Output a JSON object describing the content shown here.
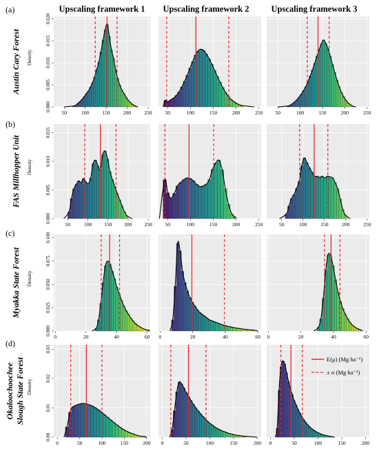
{
  "figure": {
    "column_headers": [
      "Upscaling framework 1",
      "Upscaling framework 2",
      "Upscaling framework 3"
    ],
    "row_labels": [
      {
        "letter": "(a)",
        "lines": [
          "Austin Cary Forest"
        ]
      },
      {
        "letter": "(b)",
        "lines": [
          "FAS Millhopper Unit"
        ]
      },
      {
        "letter": "(c)",
        "lines": [
          "Myakka State Forest"
        ]
      },
      {
        "letter": "(d)",
        "lines": [
          "Okaloochoochee",
          "Slough State Forest"
        ]
      }
    ],
    "legend": {
      "mean_label": "E(μ) (Mg ha⁻¹)",
      "sd_label": "± σ (Mg ha⁻¹)",
      "position": "top-right of panel d3"
    },
    "colors": {
      "panel_bg": "#ebebeb",
      "grid": "#ffffff",
      "mean_line": "#e8272b",
      "sd_line": "#e8272b",
      "density_curve": "#000000",
      "palette": "viridis"
    }
  },
  "chart_data": [
    {
      "id": "a1",
      "type": "bar",
      "title": "",
      "xlabel": "",
      "ylabel": "Density",
      "xlim": [
        25,
        255
      ],
      "ylim": [
        0,
        0.0205
      ],
      "xticks": [
        "50",
        "100",
        "150",
        "200",
        "250"
      ],
      "xtick_values": [
        50,
        100,
        150,
        200,
        250
      ],
      "yticks": [
        "0.000",
        "0.005",
        "0.010",
        "0.015",
        "0.020"
      ],
      "ytick_values": [
        0,
        0.005,
        0.01,
        0.015,
        0.02
      ],
      "hist": {
        "start": 70,
        "width": 5,
        "values": [
          0.0002,
          0.0004,
          0.0008,
          0.0012,
          0.0017,
          0.0023,
          0.003,
          0.0036,
          0.0045,
          0.0055,
          0.0068,
          0.0085,
          0.0102,
          0.0125,
          0.0152,
          0.0175,
          0.0188,
          0.016,
          0.013,
          0.011,
          0.0085,
          0.0065,
          0.005,
          0.0038,
          0.003,
          0.0022,
          0.0015,
          0.001,
          0.0006,
          0.0003,
          0.0001
        ]
      },
      "density_range": [
        50,
        225
      ],
      "mean": 152,
      "sd_lines": [
        124,
        176
      ]
    },
    {
      "id": "a2",
      "type": "bar",
      "title": "",
      "xlabel": "",
      "ylabel": "",
      "xlim": [
        30,
        255
      ],
      "ylim": [
        0,
        0.0205
      ],
      "xticks": [
        "50",
        "100",
        "150",
        "200",
        "250"
      ],
      "xtick_values": [
        50,
        100,
        150,
        200,
        250
      ],
      "yticks": [],
      "ytick_values": [
        0,
        0.005,
        0.01,
        0.015,
        0.02
      ],
      "hist": {
        "start": 42,
        "width": 6,
        "values": [
          0.0015,
          0.0012,
          0.0016,
          0.002,
          0.0026,
          0.0034,
          0.0045,
          0.0058,
          0.0072,
          0.0088,
          0.0103,
          0.0118,
          0.0127,
          0.0131,
          0.0128,
          0.012,
          0.0109,
          0.0097,
          0.0083,
          0.0069,
          0.0056,
          0.0044,
          0.0033,
          0.0024,
          0.0017,
          0.0012,
          0.0008,
          0.0005,
          0.0003
        ]
      },
      "density_range": [
        40,
        240
      ],
      "mean": 112,
      "sd_lines": [
        48,
        184
      ]
    },
    {
      "id": "a3",
      "type": "bar",
      "title": "",
      "xlabel": "",
      "ylabel": "",
      "xlim": [
        25,
        255
      ],
      "ylim": [
        0,
        0.0205
      ],
      "xticks": [
        "50",
        "100",
        "150",
        "200",
        "250"
      ],
      "xtick_values": [
        50,
        100,
        150,
        200,
        250
      ],
      "yticks": [],
      "ytick_values": [
        0,
        0.005,
        0.01,
        0.015,
        0.02
      ],
      "hist": {
        "start": 70,
        "width": 5,
        "values": [
          0.0002,
          0.0004,
          0.0007,
          0.0011,
          0.0016,
          0.0022,
          0.0029,
          0.0037,
          0.0046,
          0.0057,
          0.007,
          0.0084,
          0.0099,
          0.0115,
          0.013,
          0.0143,
          0.0152,
          0.0144,
          0.0132,
          0.0115,
          0.0096,
          0.0078,
          0.0061,
          0.0046,
          0.0033,
          0.0023,
          0.0015,
          0.0009,
          0.0005,
          0.0002
        ]
      },
      "density_range": [
        50,
        225
      ],
      "mean": 140,
      "sd_lines": [
        116,
        165
      ]
    },
    {
      "id": "b1",
      "type": "bar",
      "title": "",
      "xlabel": "",
      "ylabel": "Density",
      "xlim": [
        15,
        255
      ],
      "ylim": [
        0,
        0.0165
      ],
      "xticks": [
        "50",
        "100",
        "150",
        "200",
        "250"
      ],
      "xtick_values": [
        50,
        100,
        150,
        200,
        250
      ],
      "yticks": [
        "0.000",
        "0.005",
        "0.010",
        "0.015"
      ],
      "ytick_values": [
        0,
        0.005,
        0.01,
        0.015
      ],
      "hist": {
        "start": 50,
        "width": 6,
        "values": [
          0.0012,
          0.0035,
          0.0052,
          0.006,
          0.0066,
          0.0063,
          0.007,
          0.0064,
          0.0061,
          0.0071,
          0.0096,
          0.0102,
          0.0092,
          0.0085,
          0.0112,
          0.0118,
          0.0104,
          0.0082,
          0.0068,
          0.0056,
          0.0044,
          0.0033,
          0.0022,
          0.0012,
          0.0005
        ]
      },
      "density_range": [
        40,
        210
      ],
      "mean": 131,
      "sd_lines": [
        92,
        170
      ]
    },
    {
      "id": "b2",
      "type": "bar",
      "title": "",
      "xlabel": "",
      "ylabel": "",
      "xlim": [
        30,
        255
      ],
      "ylim": [
        0,
        0.0165
      ],
      "xticks": [
        "50",
        "100",
        "150",
        "200",
        "250"
      ],
      "xtick_values": [
        50,
        100,
        150,
        200,
        250
      ],
      "yticks": [],
      "ytick_values": [
        0,
        0.005,
        0.01,
        0.015
      ],
      "hist": {
        "start": 40,
        "width": 7,
        "values": [
          0.0068,
          0.0045,
          0.0036,
          0.0044,
          0.0057,
          0.0063,
          0.0068,
          0.0071,
          0.007,
          0.0066,
          0.006,
          0.0056,
          0.0057,
          0.006,
          0.0068,
          0.0086,
          0.0097,
          0.0102,
          0.0085,
          0.0052,
          0.0025,
          0.0008,
          0.0003
        ]
      },
      "density_range": [
        32,
        195
      ],
      "mean": 97,
      "sd_lines": [
        44,
        151
      ]
    },
    {
      "id": "b3",
      "type": "bar",
      "title": "",
      "xlabel": "",
      "ylabel": "",
      "xlim": [
        15,
        255
      ],
      "ylim": [
        0,
        0.0165
      ],
      "xticks": [
        "50",
        "100",
        "150",
        "200",
        "250"
      ],
      "xtick_values": [
        50,
        100,
        150,
        200,
        250
      ],
      "yticks": [],
      "ytick_values": [
        0,
        0.005,
        0.01,
        0.015
      ],
      "hist": {
        "start": 58,
        "width": 6,
        "values": [
          0.0008,
          0.0022,
          0.0035,
          0.0042,
          0.0053,
          0.0065,
          0.0092,
          0.0106,
          0.0098,
          0.0089,
          0.0081,
          0.0074,
          0.0074,
          0.0072,
          0.0074,
          0.0071,
          0.0074,
          0.0073,
          0.0071,
          0.0063,
          0.0052,
          0.0034,
          0.0016,
          0.0006
        ]
      },
      "density_range": [
        45,
        210
      ],
      "mean": 126,
      "sd_lines": [
        92,
        158
      ]
    },
    {
      "id": "c1",
      "type": "bar",
      "title": "",
      "xlabel": "",
      "ylabel": "Density",
      "xlim": [
        -1,
        62
      ],
      "ylim": [
        0,
        0.1035
      ],
      "xticks": [
        "0",
        "20",
        "40",
        "60"
      ],
      "xtick_values": [
        0,
        20,
        40,
        60
      ],
      "yticks": [
        "0.000",
        "0.025",
        "0.050",
        "0.075",
        "0.100"
      ],
      "ytick_values": [
        0,
        0.025,
        0.05,
        0.075,
        0.1
      ],
      "hist": {
        "start": 26,
        "width": 1.5,
        "values": [
          0.003,
          0.012,
          0.03,
          0.052,
          0.07,
          0.075,
          0.072,
          0.064,
          0.056,
          0.047,
          0.04,
          0.033,
          0.027,
          0.022,
          0.018,
          0.014,
          0.011,
          0.008,
          0.006,
          0.0045,
          0.003,
          0.002,
          0.0013,
          0.0008
        ]
      },
      "density_range": [
        24,
        61
      ],
      "mean": 35.5,
      "sd_lines": [
        30,
        42
      ]
    },
    {
      "id": "c2",
      "type": "bar",
      "title": "",
      "xlabel": "",
      "ylabel": "",
      "xlim": [
        -1,
        62
      ],
      "ylim": [
        0,
        0.1035
      ],
      "xticks": [
        "0",
        "20",
        "40",
        "60"
      ],
      "xtick_values": [
        0,
        20,
        40,
        60
      ],
      "yticks": [],
      "ytick_values": [
        0,
        0.025,
        0.05,
        0.075,
        0.1
      ],
      "hist": {
        "start": 7,
        "width": 1.5,
        "values": [
          0.012,
          0.048,
          0.094,
          0.086,
          0.064,
          0.052,
          0.043,
          0.036,
          0.031,
          0.027,
          0.023,
          0.02,
          0.018,
          0.016,
          0.014,
          0.012,
          0.011,
          0.01,
          0.009,
          0.008,
          0.007,
          0.0062,
          0.0055,
          0.0048,
          0.0042,
          0.0037,
          0.0032,
          0.0028,
          0.0024,
          0.002,
          0.0017,
          0.0014,
          0.0012,
          0.001
        ]
      },
      "density_range": [
        6,
        60
      ],
      "mean": 19.5,
      "sd_lines": [
        39.5
      ]
    },
    {
      "id": "c3",
      "type": "bar",
      "title": "",
      "xlabel": "",
      "ylabel": "",
      "xlim": [
        -1,
        62
      ],
      "ylim": [
        0,
        0.1035
      ],
      "xticks": [
        "0",
        "20",
        "40",
        "60"
      ],
      "xtick_values": [
        0,
        20,
        40,
        60
      ],
      "yticks": [],
      "ytick_values": [
        0,
        0.025,
        0.05,
        0.075,
        0.1
      ],
      "hist": {
        "start": 30,
        "width": 1.5,
        "values": [
          0.004,
          0.013,
          0.035,
          0.065,
          0.082,
          0.081,
          0.07,
          0.055,
          0.042,
          0.032,
          0.024,
          0.018,
          0.013,
          0.009,
          0.006,
          0.004,
          0.0025,
          0.0015
        ]
      },
      "density_range": [
        28,
        58
      ],
      "mean": 38.5,
      "sd_lines": [
        34.5,
        44
      ]
    },
    {
      "id": "d1",
      "type": "bar",
      "title": "",
      "xlabel": "",
      "ylabel": "Density",
      "xlim": [
        -8,
        208
      ],
      "ylim": [
        0,
        0.0315
      ],
      "xticks": [
        "0",
        "50",
        "100",
        "150",
        "200"
      ],
      "xtick_values": [
        0,
        50,
        100,
        150,
        200
      ],
      "yticks": [
        "0.00",
        "0.01",
        "0.02",
        "0.03"
      ],
      "ytick_values": [
        0,
        0.01,
        0.02,
        0.03
      ],
      "hist": {
        "start": 18,
        "width": 7,
        "values": [
          0.0035,
          0.0085,
          0.0104,
          0.0109,
          0.0113,
          0.0115,
          0.0114,
          0.0111,
          0.0107,
          0.0101,
          0.0094,
          0.0086,
          0.0077,
          0.0068,
          0.0059,
          0.005,
          0.0042,
          0.0034,
          0.0027,
          0.0021,
          0.0016,
          0.0012,
          0.0008,
          0.0005,
          0.0003,
          0.0002
        ]
      },
      "density_range": [
        15,
        200
      ],
      "mean": 65,
      "sd_lines": [
        30,
        100
      ]
    },
    {
      "id": "d2",
      "type": "bar",
      "title": "",
      "xlabel": "",
      "ylabel": "",
      "xlim": [
        -8,
        208
      ],
      "ylim": [
        0,
        0.0315
      ],
      "xticks": [
        "0",
        "50",
        "100",
        "150",
        "200"
      ],
      "xtick_values": [
        0,
        50,
        100,
        150,
        200
      ],
      "yticks": [],
      "ytick_values": [
        0,
        0.01,
        0.02,
        0.03
      ],
      "hist": {
        "start": 18,
        "width": 5,
        "values": [
          0.0025,
          0.009,
          0.0155,
          0.0188,
          0.0182,
          0.0168,
          0.0152,
          0.0138,
          0.0125,
          0.0112,
          0.01,
          0.009,
          0.008,
          0.0071,
          0.0062,
          0.0054,
          0.0047,
          0.0041,
          0.0035,
          0.003,
          0.0026,
          0.0022,
          0.0019,
          0.0016,
          0.0013,
          0.0011,
          0.0009,
          0.0007,
          0.0006,
          0.0005,
          0.0004,
          0.0003
        ]
      },
      "density_range": [
        15,
        200
      ],
      "mean": 55,
      "sd_lines": [
        18,
        92
      ]
    },
    {
      "id": "d3",
      "type": "bar",
      "title": "",
      "xlabel": "",
      "ylabel": "",
      "xlim": [
        -8,
        208
      ],
      "ylim": [
        0,
        0.0315
      ],
      "xticks": [
        "0",
        "50",
        "100",
        "150",
        "200"
      ],
      "xtick_values": [
        0,
        50,
        100,
        150,
        200
      ],
      "yticks": [],
      "ytick_values": [
        0,
        0.01,
        0.02,
        0.03
      ],
      "hist": {
        "start": 12,
        "width": 4,
        "values": [
          0.003,
          0.016,
          0.024,
          0.026,
          0.025,
          0.022,
          0.019,
          0.0165,
          0.0145,
          0.0125,
          0.011,
          0.0095,
          0.0082,
          0.007,
          0.006,
          0.0051,
          0.0043,
          0.0036,
          0.003,
          0.0025,
          0.0021,
          0.0017,
          0.0014,
          0.0011,
          0.0009,
          0.0007,
          0.0005,
          0.0004,
          0.0003,
          0.0002
        ]
      },
      "density_range": [
        10,
        135
      ],
      "mean": 43,
      "sd_lines": [
        22,
        67
      ]
    }
  ]
}
